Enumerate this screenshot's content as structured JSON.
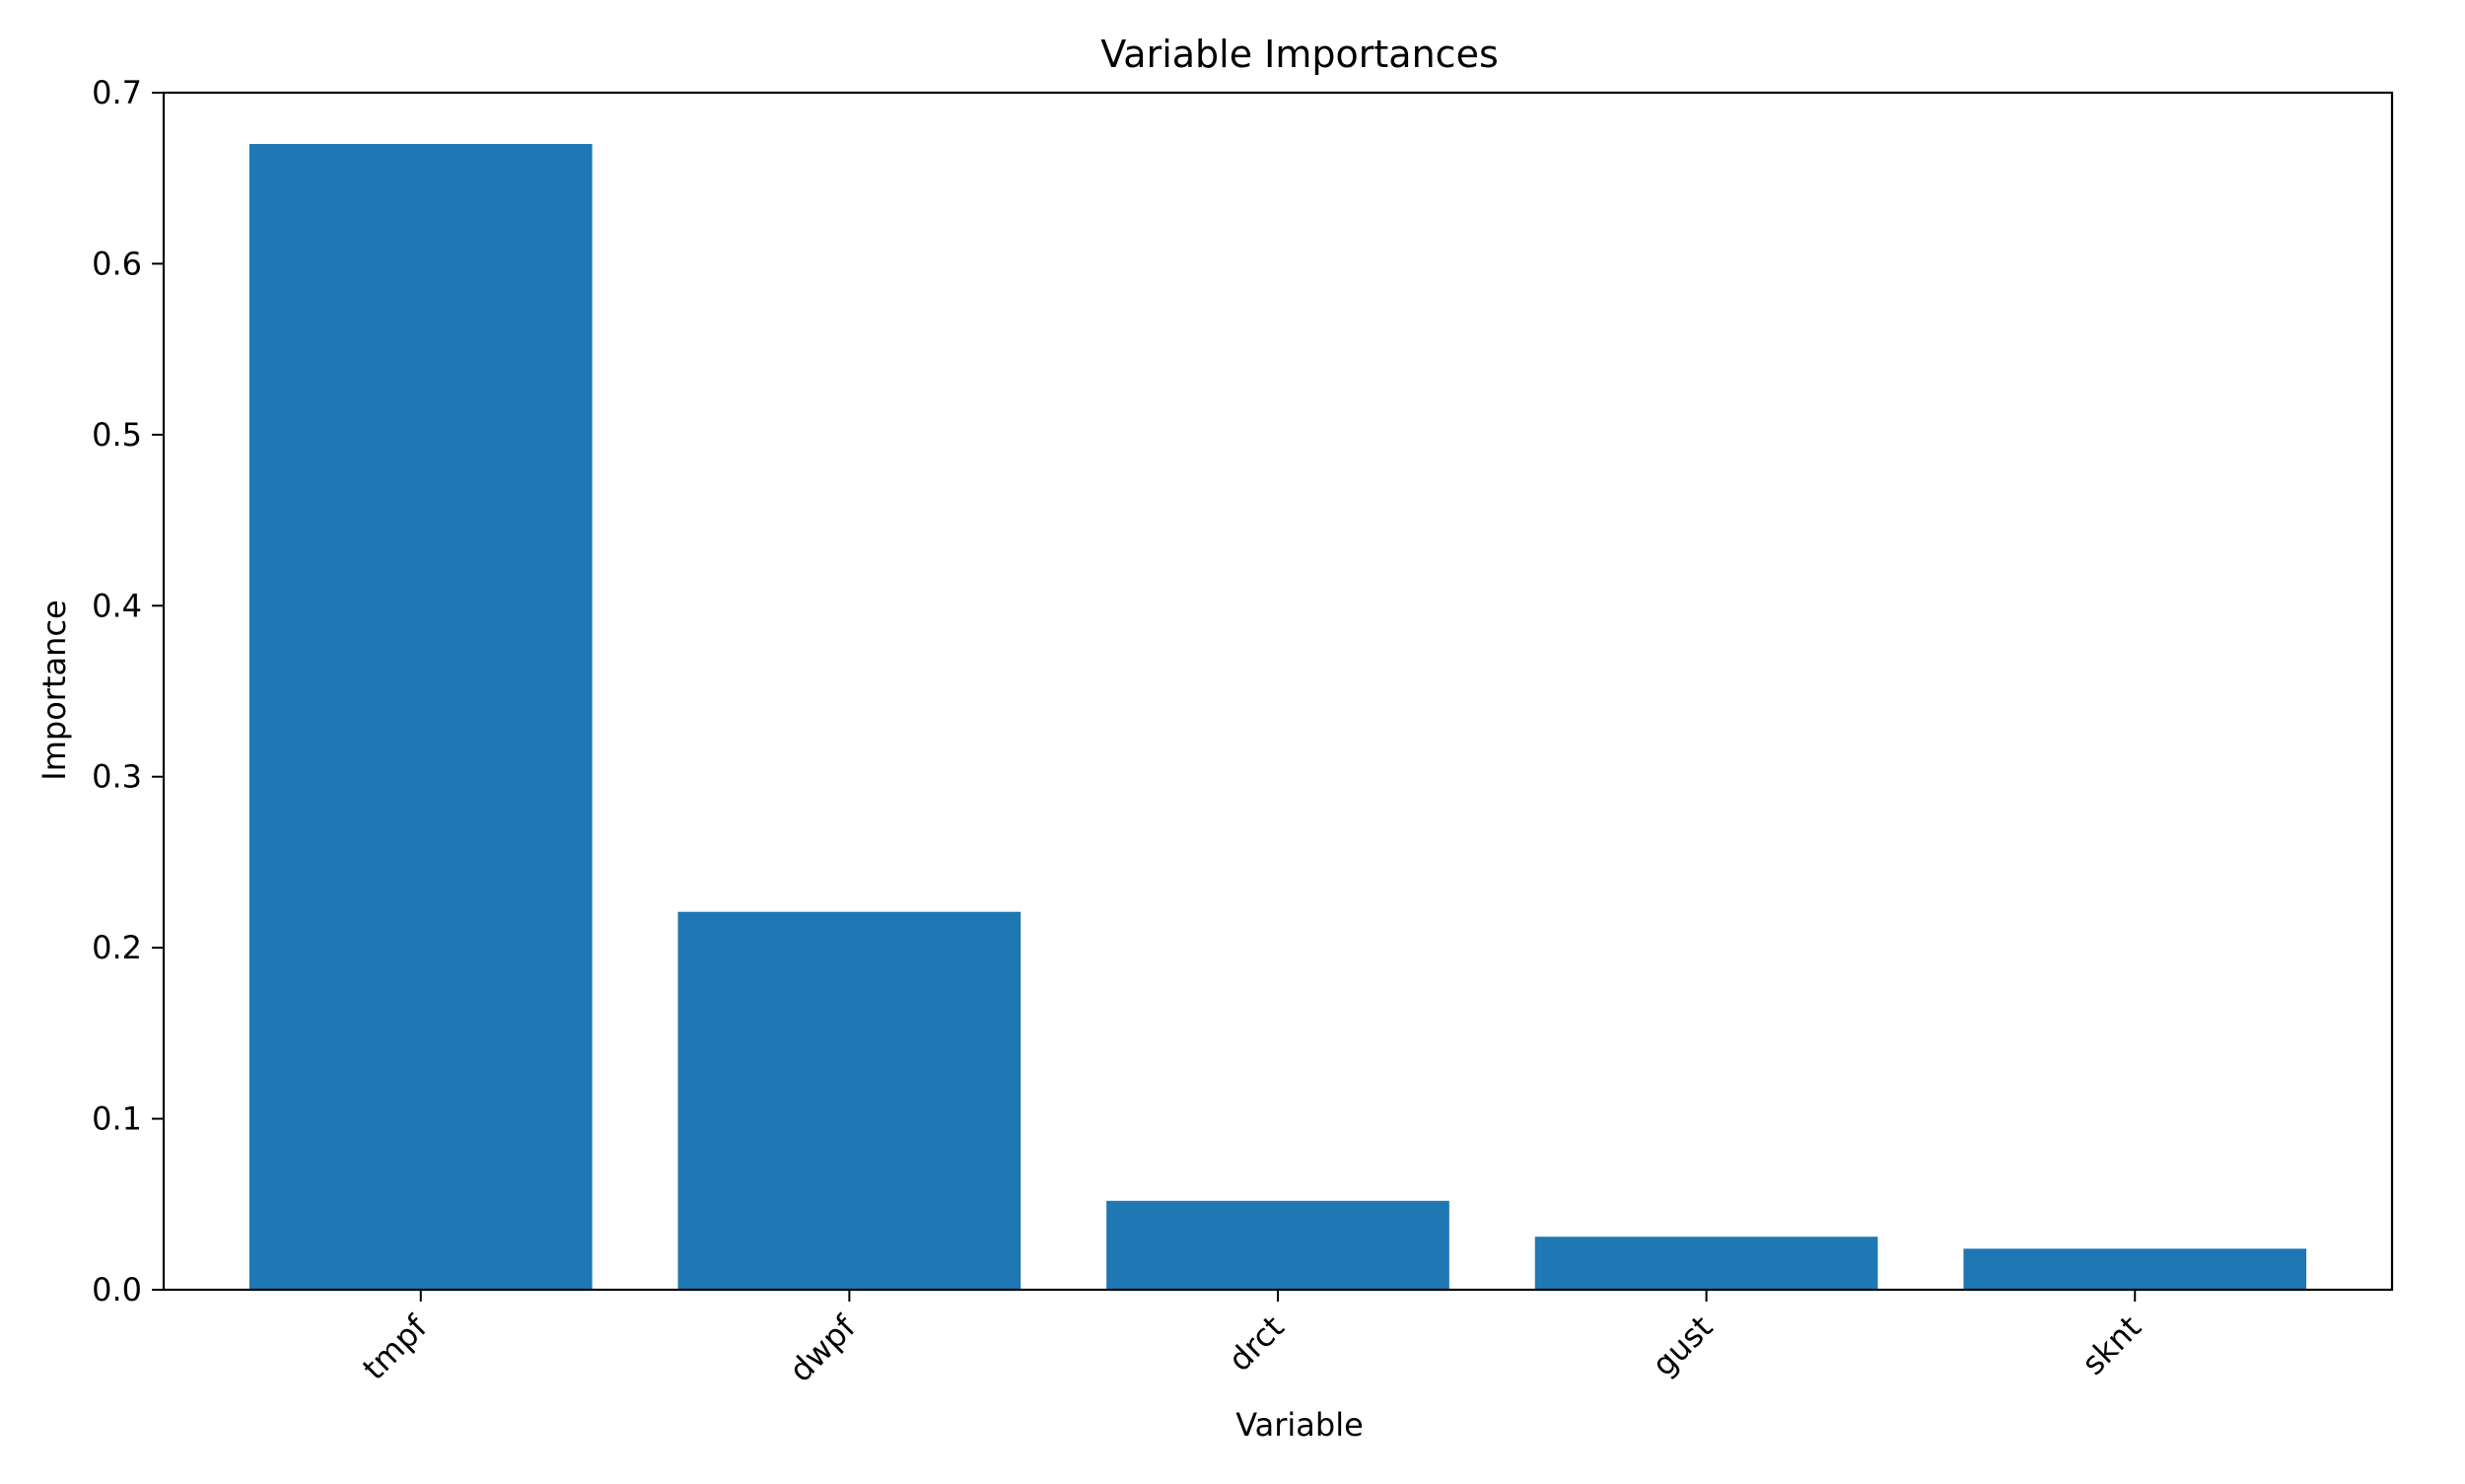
{
  "chart_data": {
    "type": "bar",
    "title": "Variable Importances",
    "xlabel": "Variable",
    "ylabel": "Importance",
    "categories": [
      "tmpf",
      "dwpf",
      "drct",
      "gust",
      "sknt"
    ],
    "values": [
      0.67,
      0.221,
      0.052,
      0.031,
      0.024
    ],
    "ylim": [
      0,
      0.7
    ],
    "yticks": [
      0.0,
      0.1,
      0.2,
      0.3,
      0.4,
      0.5,
      0.6,
      0.7
    ],
    "ytick_labels": [
      "0.0",
      "0.1",
      "0.2",
      "0.3",
      "0.4",
      "0.5",
      "0.6",
      "0.7"
    ],
    "bar_color": "#1f77b4",
    "grid": false,
    "legend": "none"
  }
}
